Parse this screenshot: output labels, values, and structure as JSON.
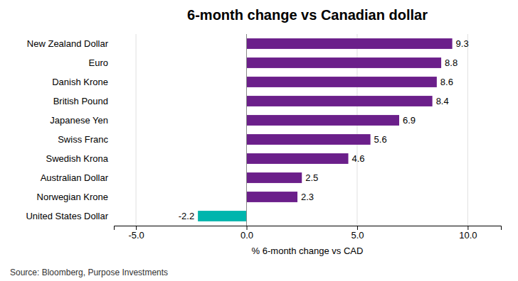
{
  "chart_data": {
    "type": "bar",
    "orientation": "horizontal",
    "title": "6-month change vs Canadian dollar",
    "xlabel": "% 6-month change vs CAD",
    "source": "Source: Bloomberg, Purpose Investments",
    "categories": [
      "United States Dollar",
      "Norwegian Krone",
      "Australian Dollar",
      "Swedish Krona",
      "Swiss Franc",
      "Japanese Yen",
      "British Pound",
      "Danish Krone",
      "Euro",
      "New Zealand Dollar"
    ],
    "values": [
      -2.2,
      2.3,
      2.5,
      4.6,
      5.6,
      6.9,
      8.4,
      8.6,
      8.8,
      9.3
    ],
    "colors": [
      "#00b5ad",
      "#6b1f8a",
      "#6b1f8a",
      "#6b1f8a",
      "#6b1f8a",
      "#6b1f8a",
      "#6b1f8a",
      "#6b1f8a",
      "#6b1f8a",
      "#6b1f8a"
    ],
    "xlim": [
      -6.0,
      11.5
    ],
    "xticks": [
      {
        "value": -5.0,
        "label": "-5.0"
      },
      {
        "value": 0.0,
        "label": "0.0"
      },
      {
        "value": 5.0,
        "label": "5.0"
      },
      {
        "value": 10.0,
        "label": "10.0"
      }
    ],
    "grid": true,
    "data_labels": true
  }
}
